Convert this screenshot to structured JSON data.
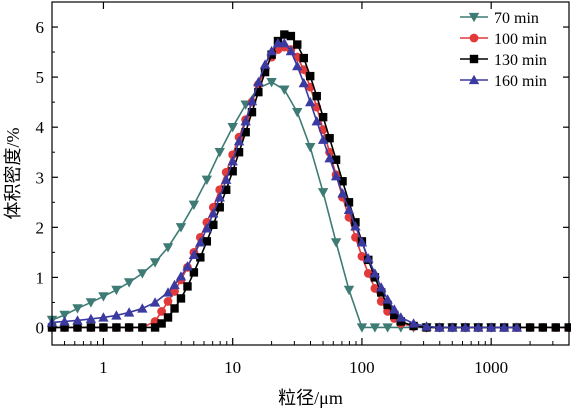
{
  "chart_data": {
    "type": "line",
    "title": "",
    "xlabel": "粒径/μm",
    "ylabel": "体积密度/%",
    "x_scale": "log",
    "xlim": [
      0.4,
      4000
    ],
    "ylim": [
      -0.35,
      6.5
    ],
    "x_ticks": [
      1,
      10,
      100,
      1000
    ],
    "x_tick_labels": [
      "1",
      "10",
      "100",
      "1000"
    ],
    "y_ticks": [
      0,
      1,
      2,
      3,
      4,
      5,
      6
    ],
    "y_tick_labels": [
      "0",
      "1",
      "2",
      "3",
      "4",
      "5",
      "6"
    ],
    "grid": false,
    "legend_position": "top-right",
    "series": [
      {
        "name": "70 min",
        "color": "#3d7b74",
        "marker": "triangle-down",
        "x": [
          0.4,
          0.5,
          0.63,
          0.8,
          1.0,
          1.26,
          1.58,
          2.0,
          2.51,
          3.16,
          3.98,
          5.01,
          6.31,
          7.94,
          10.0,
          12.6,
          15.8,
          20.0,
          25.1,
          31.6,
          39.8,
          50.1,
          63.1,
          79.4,
          100,
          126,
          158,
          200,
          251,
          316,
          398,
          501,
          631,
          794,
          1000
        ],
        "y": [
          0.15,
          0.25,
          0.38,
          0.5,
          0.62,
          0.75,
          0.9,
          1.08,
          1.3,
          1.6,
          2.0,
          2.45,
          2.95,
          3.5,
          4.0,
          4.45,
          4.78,
          4.9,
          4.75,
          4.3,
          3.6,
          2.7,
          1.7,
          0.75,
          0.0,
          0.0,
          0.0,
          0.0,
          0.0,
          0.0,
          0.0,
          0.0,
          0.0,
          0.0,
          0.0
        ]
      },
      {
        "name": "100 min",
        "color": "#e03a3a",
        "marker": "circle",
        "x": [
          0.4,
          0.5,
          0.63,
          0.8,
          1.0,
          1.26,
          1.58,
          2.0,
          2.51,
          2.82,
          3.16,
          3.55,
          3.98,
          4.47,
          5.01,
          5.62,
          6.31,
          7.08,
          7.94,
          8.91,
          10.0,
          11.2,
          12.6,
          14.1,
          15.8,
          17.8,
          20.0,
          22.4,
          25.1,
          28.2,
          31.6,
          35.5,
          39.8,
          44.7,
          50.1,
          56.2,
          63.1,
          70.8,
          79.4,
          89.1,
          100,
          112,
          126,
          141,
          158,
          178,
          200,
          251,
          316,
          398,
          501,
          631,
          794,
          1000,
          1260,
          1580,
          2000,
          2510,
          3160,
          3980
        ],
        "y": [
          0.0,
          0.0,
          0.0,
          0.0,
          0.0,
          0.0,
          0.0,
          0.0,
          0.12,
          0.32,
          0.52,
          0.72,
          0.95,
          1.2,
          1.5,
          1.8,
          2.1,
          2.4,
          2.75,
          3.1,
          3.45,
          3.8,
          4.15,
          4.5,
          4.85,
          5.15,
          5.4,
          5.55,
          5.6,
          5.55,
          5.4,
          5.15,
          4.8,
          4.4,
          3.95,
          3.5,
          3.05,
          2.6,
          2.2,
          1.8,
          1.42,
          1.08,
          0.78,
          0.52,
          0.32,
          0.18,
          0.08,
          0.02,
          0.0,
          0.0,
          0.0,
          0.0,
          0.0,
          0.0,
          0.0,
          0.0,
          0.0,
          0.0,
          0.0,
          0.0
        ]
      },
      {
        "name": "130 min",
        "color": "#000000",
        "marker": "square",
        "x": [
          0.4,
          0.5,
          0.63,
          0.8,
          1.0,
          1.26,
          1.58,
          2.0,
          2.51,
          2.82,
          3.16,
          3.55,
          3.98,
          4.47,
          5.01,
          5.62,
          6.31,
          7.08,
          7.94,
          8.91,
          10.0,
          11.2,
          12.6,
          14.1,
          15.8,
          17.8,
          20.0,
          22.4,
          25.1,
          28.2,
          31.6,
          35.5,
          39.8,
          44.7,
          50.1,
          56.2,
          63.1,
          70.8,
          79.4,
          89.1,
          100,
          112,
          126,
          141,
          158,
          178,
          200,
          251,
          316,
          398,
          501,
          631,
          794,
          1000,
          1260,
          1580,
          2000,
          2510,
          3160,
          3980
        ],
        "y": [
          0.0,
          0.0,
          0.0,
          0.0,
          0.0,
          0.0,
          0.0,
          0.0,
          0.0,
          0.08,
          0.2,
          0.38,
          0.58,
          0.82,
          1.1,
          1.4,
          1.72,
          2.05,
          2.4,
          2.75,
          3.12,
          3.5,
          3.9,
          4.3,
          4.7,
          5.1,
          5.45,
          5.72,
          5.85,
          5.82,
          5.65,
          5.38,
          5.02,
          4.62,
          4.2,
          3.78,
          3.35,
          2.92,
          2.5,
          2.1,
          1.72,
          1.35,
          1.0,
          0.7,
          0.45,
          0.25,
          0.12,
          0.03,
          0.0,
          0.0,
          0.0,
          0.0,
          0.0,
          0.0,
          0.0,
          0.0,
          0.0,
          0.0,
          0.0,
          0.0
        ]
      },
      {
        "name": "160 min",
        "color": "#3a3aa0",
        "marker": "triangle-up",
        "x": [
          0.4,
          0.5,
          0.63,
          0.8,
          1.0,
          1.26,
          1.58,
          2.0,
          2.51,
          3.16,
          3.55,
          3.98,
          4.47,
          5.01,
          5.62,
          6.31,
          7.08,
          7.94,
          8.91,
          10.0,
          11.2,
          12.6,
          14.1,
          15.8,
          17.8,
          20.0,
          22.4,
          25.1,
          28.2,
          31.6,
          35.5,
          39.8,
          44.7,
          50.1,
          56.2,
          63.1,
          70.8,
          79.4,
          89.1,
          100,
          112,
          126,
          141,
          158,
          178,
          200,
          251,
          316,
          398,
          501,
          631,
          794,
          1000,
          1260,
          1580
        ],
        "y": [
          0.1,
          0.12,
          0.14,
          0.17,
          0.2,
          0.24,
          0.3,
          0.38,
          0.5,
          0.7,
          0.85,
          1.02,
          1.22,
          1.45,
          1.7,
          1.98,
          2.28,
          2.6,
          2.95,
          3.32,
          3.72,
          4.12,
          4.52,
          4.9,
          5.25,
          5.52,
          5.68,
          5.68,
          5.52,
          5.22,
          4.88,
          4.5,
          4.12,
          3.75,
          3.38,
          3.02,
          2.68,
          2.35,
          2.02,
          1.7,
          1.38,
          1.08,
          0.8,
          0.56,
          0.36,
          0.2,
          0.08,
          0.02,
          0.0,
          0.0,
          0.0,
          0.0,
          0.0,
          0.0,
          0.0
        ]
      }
    ]
  }
}
